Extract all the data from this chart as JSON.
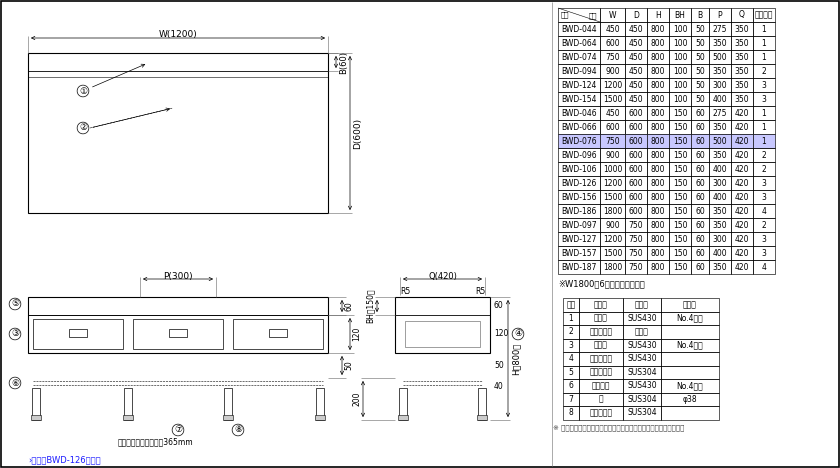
{
  "bg_color": "#ffffff",
  "table1_headers": [
    "型式",
    "W",
    "D",
    "H",
    "BH",
    "B",
    "P",
    "Q",
    "引出し数"
  ],
  "table1_header_top": "寸法",
  "table1_rows": [
    [
      "BWD-044",
      "450",
      "450",
      "800",
      "100",
      "50",
      "275",
      "350",
      "1"
    ],
    [
      "BWD-064",
      "600",
      "450",
      "800",
      "100",
      "50",
      "350",
      "350",
      "1"
    ],
    [
      "BWD-074",
      "750",
      "450",
      "800",
      "100",
      "50",
      "500",
      "350",
      "1"
    ],
    [
      "BWD-094",
      "900",
      "450",
      "800",
      "100",
      "50",
      "350",
      "350",
      "2"
    ],
    [
      "BWD-124",
      "1200",
      "450",
      "800",
      "100",
      "50",
      "300",
      "350",
      "3"
    ],
    [
      "BWD-154",
      "1500",
      "450",
      "800",
      "100",
      "50",
      "400",
      "350",
      "3"
    ],
    [
      "BWD-046",
      "450",
      "600",
      "800",
      "150",
      "60",
      "275",
      "420",
      "1"
    ],
    [
      "BWD-066",
      "600",
      "600",
      "800",
      "150",
      "60",
      "350",
      "420",
      "1"
    ],
    [
      "BWD-076",
      "750",
      "600",
      "800",
      "150",
      "60",
      "500",
      "420",
      "1"
    ],
    [
      "BWD-096",
      "900",
      "600",
      "800",
      "150",
      "60",
      "350",
      "420",
      "2"
    ],
    [
      "BWD-106",
      "1000",
      "600",
      "800",
      "150",
      "60",
      "400",
      "420",
      "2"
    ],
    [
      "BWD-126",
      "1200",
      "600",
      "800",
      "150",
      "60",
      "300",
      "420",
      "3"
    ],
    [
      "BWD-156",
      "1500",
      "600",
      "800",
      "150",
      "60",
      "400",
      "420",
      "3"
    ],
    [
      "BWD-186",
      "1800",
      "600",
      "800",
      "150",
      "60",
      "350",
      "420",
      "4"
    ],
    [
      "BWD-097",
      "900",
      "750",
      "800",
      "150",
      "60",
      "350",
      "420",
      "2"
    ],
    [
      "BWD-127",
      "1200",
      "750",
      "800",
      "150",
      "60",
      "300",
      "420",
      "3"
    ],
    [
      "BWD-157",
      "1500",
      "750",
      "800",
      "150",
      "60",
      "400",
      "420",
      "3"
    ],
    [
      "BWD-187",
      "1800",
      "750",
      "800",
      "150",
      "60",
      "350",
      "420",
      "4"
    ]
  ],
  "table1_highlight_row": "BWD-076",
  "note1": "※W1800は6本脚となります。",
  "table2_headers": [
    "番号",
    "品　名",
    "材　質",
    "備　号"
  ],
  "table2_rows": [
    [
      "1",
      "トップ",
      "SUS430",
      "No.4仕上"
    ],
    [
      "2",
      "トップ補強",
      "ボンデ",
      ""
    ],
    [
      "3",
      "化化板",
      "SUS430",
      "No.4仕上"
    ],
    [
      "4",
      "引出し本体",
      "SUS430",
      ""
    ],
    [
      "5",
      "引出し手子",
      "SUS304",
      ""
    ],
    [
      "6",
      "スノコ板",
      "SUS430",
      "No.4仕上"
    ],
    [
      "7",
      "脚",
      "SUS304",
      "φ38"
    ],
    [
      "8",
      "アジャスト",
      "SUS304",
      ""
    ]
  ],
  "note2": "※ 図面の為、仕様及び外観を予告なしに変更することがあります。",
  "note3": "›本図はBWD-126を示す",
  "label_W": "W(1200)",
  "label_B": "B(60)",
  "label_D": "D(600)",
  "label_P": "P(300)",
  "label_Q": "Q(420)",
  "label_R5": "R5",
  "label_BH": "BH（150）",
  "label_H": "H（800）",
  "label_60": "60",
  "label_120": "120",
  "label_50": "50",
  "label_40": "40",
  "label_200": "200",
  "sunoko_note": "スノコ板上面有効高さ365mm",
  "circle1": "①",
  "circle2": "②",
  "circle3": "③",
  "circle4": "④",
  "circle5": "⑤",
  "circle6": "⑥",
  "circle7": "⑦",
  "circle8": "⑧"
}
